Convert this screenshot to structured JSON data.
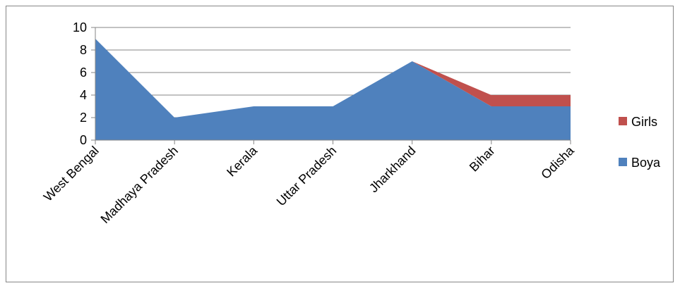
{
  "chart_data": {
    "type": "area",
    "stacked": true,
    "categories": [
      "West Bengal",
      "Madhaya Pradesh",
      "Kerala",
      "Uttar Pradesh",
      "Jharkhand",
      "Bihar",
      "Odisha"
    ],
    "series": [
      {
        "name": "Boya",
        "values": [
          9,
          2,
          3,
          3,
          7,
          3,
          3
        ],
        "color": "#4F81BD"
      },
      {
        "name": "Girls",
        "values": [
          0,
          0,
          0,
          0,
          0,
          1,
          1
        ],
        "color": "#C0504D"
      }
    ],
    "ylim": [
      0,
      10
    ],
    "yticks": [
      0,
      2,
      4,
      6,
      8,
      10
    ],
    "grid": true,
    "legend": "right",
    "legend_order": [
      "Girls",
      "Boya"
    ]
  }
}
